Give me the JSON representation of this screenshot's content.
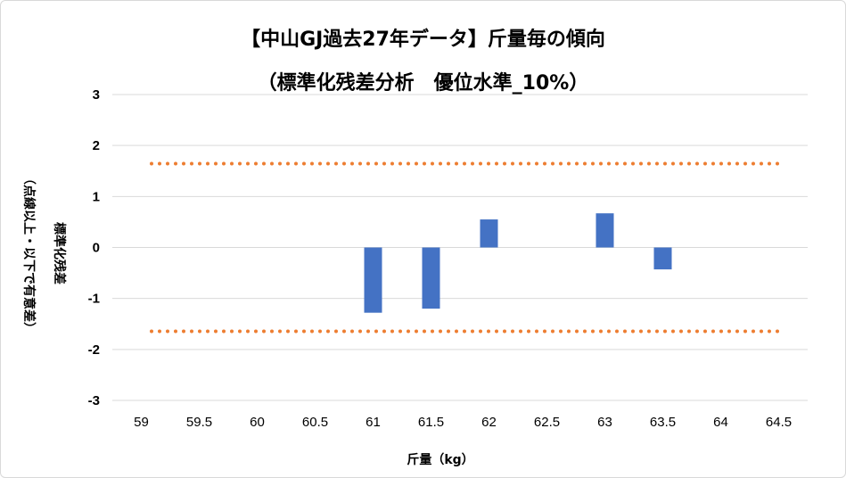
{
  "chart_data": {
    "type": "bar",
    "title": "【中山GJ過去27年データ】斤量毎の傾向",
    "subtitle": "（標準化残差分析　優位水準_10%）",
    "xlabel": "斤量（kg）",
    "ylabel_line1": "標準化残差",
    "ylabel_line2": "（点線以上・以下で有意差）",
    "categories": [
      "59",
      "59.5",
      "60",
      "60.5",
      "61",
      "61.5",
      "62",
      "62.5",
      "63",
      "63.5",
      "64",
      "64.5"
    ],
    "series": [
      {
        "values": [
          null,
          null,
          null,
          null,
          -1.28,
          -1.2,
          0.55,
          null,
          0.67,
          -0.43,
          null,
          null
        ]
      }
    ],
    "ylim": [
      -3,
      3
    ],
    "yticks": [
      3,
      2,
      1,
      0,
      -1,
      -2,
      -3
    ],
    "threshold_lines": [
      1.645,
      -1.645
    ],
    "grid": true,
    "colors": {
      "bar": "#4472C4",
      "threshold": "#ED7D31",
      "grid": "#d9d9d9"
    }
  }
}
